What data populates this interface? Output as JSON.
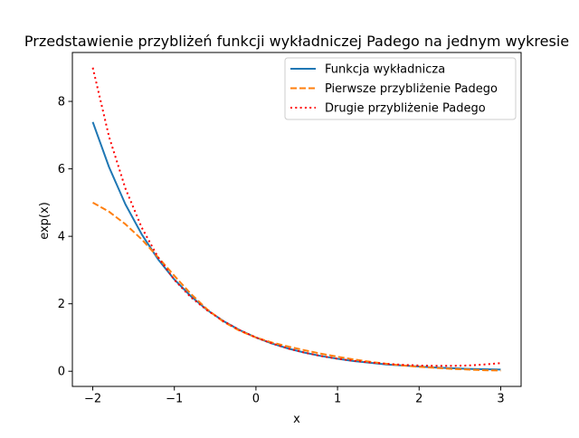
{
  "chart_data": {
    "type": "line",
    "title": "Przedstawienie przybliżeń funkcji wykładniczej Padego na jednym wykresie",
    "xlabel": "x",
    "ylabel": "exp(x)",
    "xlim": [
      -2.25,
      3.25
    ],
    "ylim": [
      -0.45,
      9.45
    ],
    "grid": false,
    "legend_position": "top-right",
    "x_ticks": [
      -2,
      -1,
      0,
      1,
      2,
      3
    ],
    "x_tick_labels": [
      "−2",
      "−1",
      "0",
      "1",
      "2",
      "3"
    ],
    "y_ticks": [
      0,
      2,
      4,
      6,
      8
    ],
    "y_tick_labels": [
      "0",
      "2",
      "4",
      "6",
      "8"
    ],
    "x": [
      -2.0,
      -1.8,
      -1.6,
      -1.4,
      -1.2,
      -1.0,
      -0.8,
      -0.6,
      -0.4,
      -0.2,
      0.0,
      0.2,
      0.4,
      0.6,
      0.8,
      1.0,
      1.2,
      1.4,
      1.6,
      1.8,
      2.0,
      2.2,
      2.4,
      2.6,
      2.8,
      3.0
    ],
    "series": [
      {
        "name": "Funkcja wykładnicza",
        "color": "#1f77b4",
        "linestyle": "solid",
        "values": [
          7.39,
          6.05,
          4.95,
          4.06,
          3.32,
          2.72,
          2.23,
          1.82,
          1.49,
          1.22,
          1.0,
          0.82,
          0.67,
          0.55,
          0.45,
          0.37,
          0.3,
          0.25,
          0.2,
          0.17,
          0.14,
          0.11,
          0.09,
          0.07,
          0.06,
          0.05
        ]
      },
      {
        "name": "Pierwsze przybliżenie Padego",
        "color": "#ff7f0e",
        "linestyle": "dashed",
        "values": [
          5.0,
          4.73,
          4.36,
          3.91,
          3.38,
          2.83,
          2.3,
          1.84,
          1.47,
          1.2,
          1.0,
          0.85,
          0.73,
          0.62,
          0.52,
          0.43,
          0.35,
          0.28,
          0.22,
          0.17,
          0.13,
          0.1,
          0.07,
          0.05,
          0.03,
          0.02
        ]
      },
      {
        "name": "Drugie przybliżenie Padego",
        "color": "#ff0000",
        "linestyle": "dotted",
        "values": [
          9.0,
          6.95,
          5.42,
          4.26,
          3.38,
          2.71,
          2.2,
          1.81,
          1.49,
          1.22,
          1.0,
          0.82,
          0.67,
          0.55,
          0.45,
          0.37,
          0.31,
          0.26,
          0.22,
          0.19,
          0.17,
          0.16,
          0.16,
          0.17,
          0.2,
          0.24
        ]
      }
    ]
  }
}
